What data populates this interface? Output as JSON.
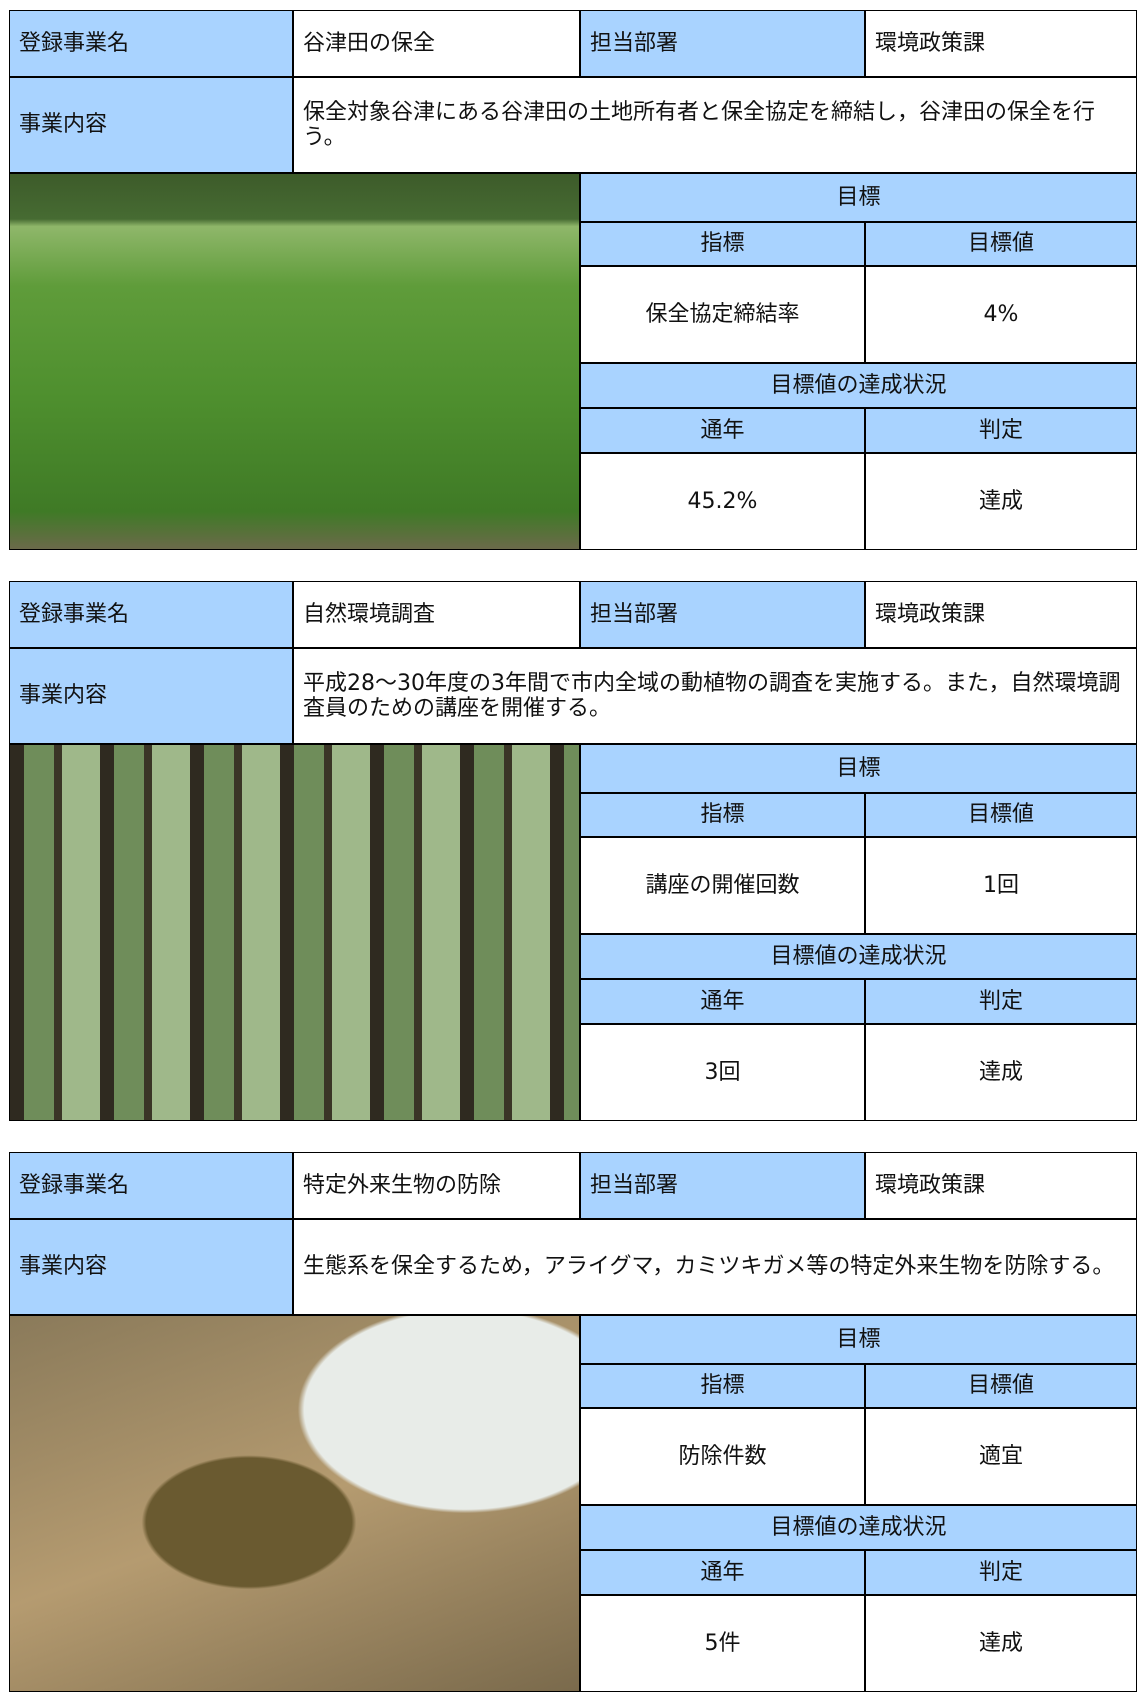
{
  "projects": [
    {
      "name_label": "登録事業名",
      "name": "谷津田の保全",
      "department_label": "担当部署",
      "department": "環境政策課",
      "content_label": "事業内容",
      "content": "保全対象谷津にある谷津田の土地所有者と保全協定を締結し，谷津田の保全を行う。",
      "target_heading": "目標",
      "indicator_label": "指標",
      "target_value_label": "目標値",
      "indicator": "保全協定締結率",
      "target_value": "4%",
      "achievement_heading": "目標値の達成状況",
      "year_label": "通年",
      "judgment_label": "判定",
      "result": "45.2%",
      "judgment": "達成"
    },
    {
      "name_label": "登録事業名",
      "name": "自然環境調査",
      "department_label": "担当部署",
      "department": "環境政策課",
      "content_label": "事業内容",
      "content": "平成28～30年度の3年間で市内全域の動植物の調査を実施する。また，自然環境調査員のための講座を開催する。",
      "target_heading": "目標",
      "indicator_label": "指標",
      "target_value_label": "目標値",
      "indicator": "講座の開催回数",
      "target_value": "1回",
      "achievement_heading": "目標値の達成状況",
      "year_label": "通年",
      "judgment_label": "判定",
      "result": "3回",
      "judgment": "達成"
    },
    {
      "name_label": "登録事業名",
      "name": "特定外来生物の防除",
      "department_label": "担当部署",
      "department": "環境政策課",
      "content_label": "事業内容",
      "content": "生態系を保全するため，アライグマ，カミツキガメ等の特定外来生物を防除する。",
      "target_heading": "目標",
      "indicator_label": "指標",
      "target_value_label": "目標値",
      "indicator": "防除件数",
      "target_value": "適宜",
      "achievement_heading": "目標値の達成状況",
      "year_label": "通年",
      "judgment_label": "判定",
      "result": "5件",
      "judgment": "達成"
    }
  ]
}
